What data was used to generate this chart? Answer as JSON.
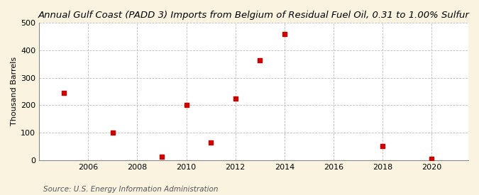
{
  "title": "Annual Gulf Coast (PADD 3) Imports from Belgium of Residual Fuel Oil, 0.31 to 1.00% Sulfur",
  "ylabel": "Thousand Barrels",
  "source": "Source: U.S. Energy Information Administration",
  "fig_background_color": "#faf3e0",
  "plot_background_color": "#ffffff",
  "point_color": "#cc0000",
  "years": [
    2005,
    2007,
    2009,
    2010,
    2011,
    2012,
    2013,
    2014,
    2018,
    2020
  ],
  "values": [
    245,
    100,
    12,
    202,
    63,
    225,
    363,
    458,
    50,
    5
  ],
  "xlim": [
    2004.0,
    2021.5
  ],
  "ylim": [
    0,
    500
  ],
  "yticks": [
    0,
    100,
    200,
    300,
    400,
    500
  ],
  "xticks": [
    2006,
    2008,
    2010,
    2012,
    2014,
    2016,
    2018,
    2020
  ],
  "title_fontsize": 9.5,
  "label_fontsize": 8,
  "tick_fontsize": 8,
  "source_fontsize": 7.5,
  "marker_size": 18
}
